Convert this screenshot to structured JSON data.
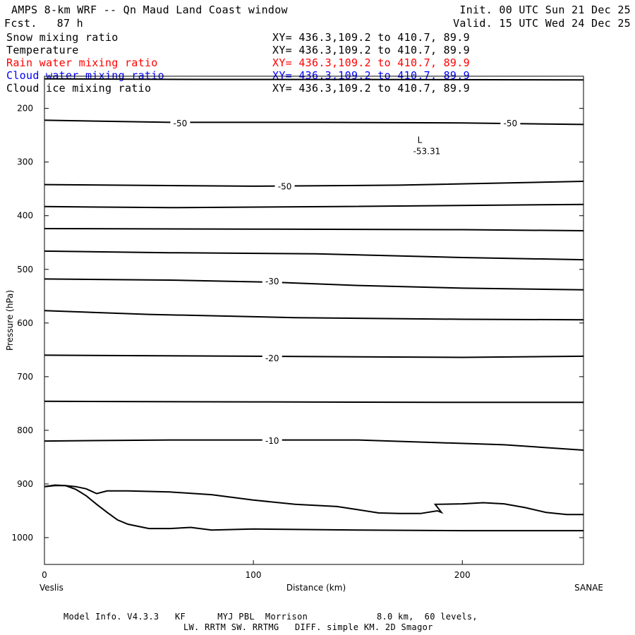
{
  "header": {
    "title": "AMPS 8-km WRF -- Qn Maud Land Coast window",
    "forecast": "Fcst.   87 h",
    "init": "Init. 00 UTC Sun 21 Dec 25",
    "valid": "Valid. 15 UTC Wed 24 Dec 25"
  },
  "legend": [
    {
      "name": "Snow mixing ratio",
      "xy": "XY= 436.3,109.2 to 410.7, 89.9",
      "color": "#000000"
    },
    {
      "name": "Temperature",
      "xy": "XY= 436.3,109.2 to 410.7, 89.9",
      "color": "#000000"
    },
    {
      "name": "Rain water mixing ratio",
      "xy": "XY= 436.3,109.2 to 410.7, 89.9",
      "color": "#ff0000"
    },
    {
      "name": "Cloud water mixing ratio",
      "xy": "XY= 436.3,109.2 to 410.7, 89.9",
      "color": "#0000ff"
    },
    {
      "name": "Cloud ice mixing ratio",
      "xy": "XY= 436.3,109.2 to 410.7, 89.9",
      "color": "#000000"
    }
  ],
  "footer": {
    "line1": "Model Info. V4.3.3   KF      MYJ PBL  Morrison             8.0 km,  60 levels,",
    "line2": "LW. RRTM SW. RRTMG   DIFF. simple KM. 2D Smagor"
  },
  "chart_data": {
    "type": "line",
    "xlabel": "Distance (km)",
    "ylabel": "Pressure (hPa)",
    "xlim": [
      0,
      258
    ],
    "ylim": [
      1050,
      140
    ],
    "x_ticks": [
      0,
      100,
      200
    ],
    "y_ticks": [
      200,
      300,
      400,
      500,
      600,
      700,
      800,
      900,
      1000
    ],
    "endpoint_left": "Veslis",
    "endpoint_right": "SANAE",
    "low_marker": {
      "label": "L",
      "value": "-53.31",
      "x": 183,
      "p": 283
    },
    "contour_labels": [
      {
        "text": "-50",
        "x": 65,
        "p": 228
      },
      {
        "text": "-50",
        "x": 223,
        "p": 228
      },
      {
        "text": "-50",
        "x": 115,
        "p": 346
      },
      {
        "text": "-30",
        "x": 109,
        "p": 523
      },
      {
        "text": "-20",
        "x": 109,
        "p": 666
      },
      {
        "text": "-10",
        "x": 109,
        "p": 820
      }
    ],
    "series": [
      {
        "x": [
          0,
          80,
          150,
          258
        ],
        "y": [
          145,
          146,
          146,
          147
        ]
      },
      {
        "x": [
          0,
          60,
          130,
          200,
          258
        ],
        "y": [
          222,
          226,
          226,
          227,
          230
        ]
      },
      {
        "x": [
          0,
          100,
          170,
          258
        ],
        "y": [
          342,
          345,
          343,
          336
        ]
      },
      {
        "x": [
          0,
          60,
          140,
          258
        ],
        "y": [
          383,
          385,
          383,
          379
        ]
      },
      {
        "x": [
          0,
          100,
          200,
          258
        ],
        "y": [
          424,
          425,
          426,
          428
        ]
      },
      {
        "x": [
          0,
          60,
          130,
          200,
          258
        ],
        "y": [
          466,
          469,
          471,
          478,
          482
        ]
      },
      {
        "x": [
          0,
          60,
          110,
          150,
          200,
          258
        ],
        "y": [
          518,
          520,
          524,
          530,
          535,
          538
        ]
      },
      {
        "x": [
          0,
          50,
          120,
          200,
          258
        ],
        "y": [
          577,
          584,
          590,
          593,
          594
        ]
      },
      {
        "x": [
          0,
          100,
          200,
          258
        ],
        "y": [
          660,
          662,
          664,
          662
        ]
      },
      {
        "x": [
          0,
          100,
          200,
          258
        ],
        "y": [
          746,
          747,
          748,
          748
        ]
      },
      {
        "x": [
          0,
          60,
          150,
          220,
          258
        ],
        "y": [
          820,
          818,
          818,
          827,
          837
        ]
      },
      {
        "x": [
          0,
          5,
          10,
          15,
          20,
          25,
          30,
          40,
          60,
          80,
          100,
          120,
          140,
          150,
          160,
          170,
          180,
          188,
          190,
          187,
          200,
          210,
          220,
          230,
          240,
          250,
          258
        ],
        "y": [
          905,
          903,
          903,
          905,
          909,
          918,
          913,
          913,
          915,
          920,
          930,
          938,
          942,
          948,
          954,
          955,
          955,
          950,
          953,
          938,
          937,
          935,
          937,
          944,
          953,
          957,
          957
        ]
      },
      {
        "x": [
          0,
          5,
          10,
          15,
          20,
          25,
          30,
          35,
          40,
          50,
          60,
          70,
          80,
          100,
          150,
          200,
          258
        ],
        "y": [
          905,
          902,
          903,
          910,
          922,
          938,
          953,
          967,
          975,
          983,
          983,
          981,
          986,
          984,
          986,
          987,
          987
        ]
      }
    ]
  }
}
